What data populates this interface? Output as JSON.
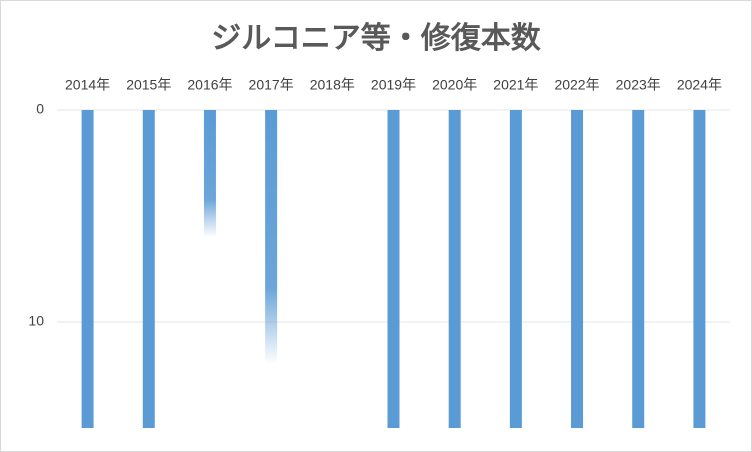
{
  "chart_data": {
    "type": "bar",
    "title": "ジルコニア等・修復本数",
    "categories": [
      "2014年",
      "2015年",
      "2016年",
      "2017年",
      "2018年",
      "2019年",
      "2020年",
      "2021年",
      "2022年",
      "2023年",
      "2024年"
    ],
    "values": [
      15,
      15,
      6,
      12,
      0,
      15,
      15,
      15,
      15,
      15,
      15
    ],
    "bar_styles": [
      "solid",
      "solid",
      "gradient",
      "gradient",
      "solid",
      "solid",
      "solid",
      "solid",
      "solid",
      "solid",
      "solid"
    ],
    "color": "#5b9bd5",
    "ylim": [
      0,
      15
    ],
    "yticks": [
      0,
      10
    ],
    "y_inverted": true,
    "grid": true
  }
}
